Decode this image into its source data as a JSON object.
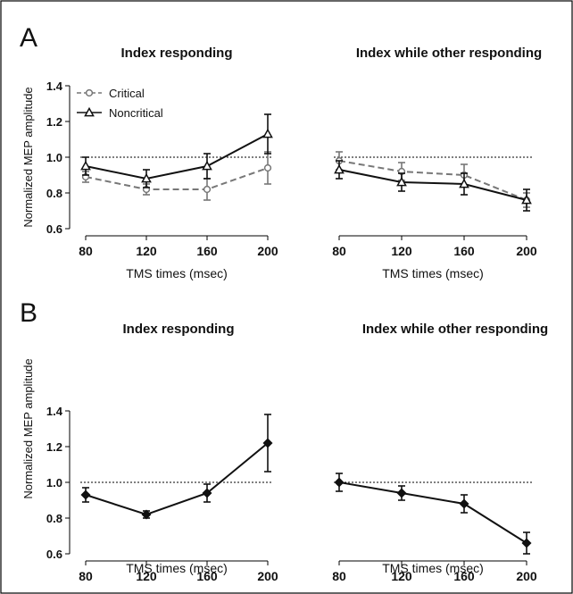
{
  "figure": {
    "y_axis_label": "Normalized MEP amplitude",
    "x_axis_label": "TMS times (msec)",
    "series_colors": {
      "Critical": "#777777",
      "Noncritical": "#111111"
    }
  },
  "chart_data": [
    {
      "type": "line",
      "panel_label": "A",
      "title": "Index responding",
      "xlabel": "TMS times (msec)",
      "ylabel": "Normalized MEP amplitude",
      "x": [
        80,
        120,
        160,
        200
      ],
      "yticks": [
        0.6,
        0.8,
        1.0,
        1.2,
        1.4
      ],
      "ylim": [
        0.6,
        1.4
      ],
      "reference_line": 1.0,
      "legend": "top-left",
      "series": [
        {
          "name": "Critical",
          "marker": "circle",
          "dash": true,
          "values": [
            0.89,
            0.82,
            0.82,
            0.94
          ],
          "err": [
            0.03,
            0.03,
            0.06,
            0.09
          ]
        },
        {
          "name": "Noncritical",
          "marker": "triangle",
          "dash": false,
          "values": [
            0.95,
            0.88,
            0.95,
            1.13
          ],
          "err": [
            0.05,
            0.05,
            0.07,
            0.11
          ]
        }
      ]
    },
    {
      "type": "line",
      "panel_label": "",
      "title": "Index while other responding",
      "xlabel": "TMS times (msec)",
      "ylabel": "",
      "x": [
        80,
        120,
        160,
        200
      ],
      "yticks": [],
      "ylim": [
        0.6,
        1.4
      ],
      "reference_line": 1.0,
      "series": [
        {
          "name": "Critical",
          "marker": "circle",
          "dash": true,
          "values": [
            0.98,
            0.92,
            0.9,
            0.76
          ],
          "err": [
            0.05,
            0.05,
            0.06,
            0.04
          ]
        },
        {
          "name": "Noncritical",
          "marker": "triangle",
          "dash": false,
          "values": [
            0.93,
            0.86,
            0.85,
            0.76
          ],
          "err": [
            0.05,
            0.05,
            0.06,
            0.06
          ]
        }
      ]
    },
    {
      "type": "line",
      "panel_label": "B",
      "title": "Index responding",
      "xlabel": "TMS times (msec)",
      "ylabel": "Normalized MEP amplitude",
      "x": [
        80,
        120,
        160,
        200
      ],
      "yticks": [
        0.6,
        0.8,
        1.0,
        1.2,
        1.4
      ],
      "ylim": [
        0.6,
        1.4
      ],
      "reference_line": 1.0,
      "series": [
        {
          "name": "",
          "marker": "diamond",
          "dash": false,
          "values": [
            0.93,
            0.82,
            0.94,
            1.22
          ],
          "err": [
            0.04,
            0.02,
            0.05,
            0.16
          ]
        }
      ]
    },
    {
      "type": "line",
      "panel_label": "",
      "title": "Index while other responding",
      "xlabel": "TMS times (msec)",
      "ylabel": "",
      "x": [
        80,
        120,
        160,
        200
      ],
      "yticks": [],
      "ylim": [
        0.6,
        1.4
      ],
      "reference_line": 1.0,
      "series": [
        {
          "name": "",
          "marker": "diamond",
          "dash": false,
          "values": [
            1.0,
            0.94,
            0.88,
            0.66
          ],
          "err": [
            0.05,
            0.04,
            0.05,
            0.06
          ]
        }
      ]
    }
  ]
}
